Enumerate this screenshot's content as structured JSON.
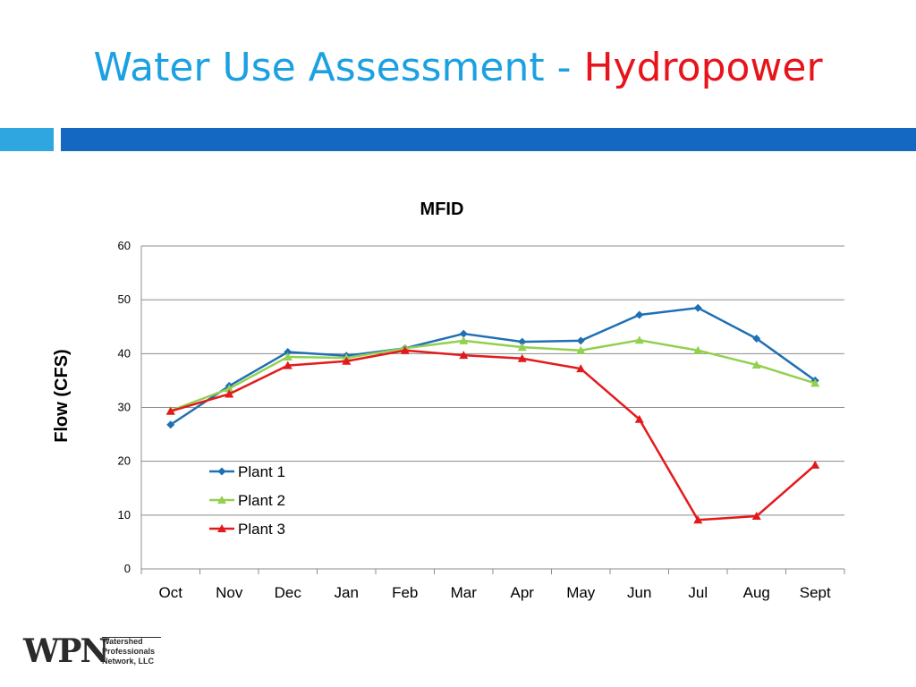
{
  "slide": {
    "title_part1": "Water Use Assessment - ",
    "title_part2": "Hydropower",
    "title_color1": "#1ba1e2",
    "title_color2": "#e8141b",
    "band_light": "#2fa6df",
    "band_dark": "#1468c2"
  },
  "logo": {
    "mark": "WPN",
    "lines": [
      "Watershed",
      "Professionals",
      "Network, LLC"
    ]
  },
  "chart_data": {
    "type": "line",
    "title": "MFID",
    "ylabel": "Flow (CFS)",
    "xlabel": "",
    "ylim": [
      0,
      60
    ],
    "yticks": [
      0,
      10,
      20,
      30,
      40,
      50,
      60
    ],
    "grid": true,
    "legend_position": "bottom-left (inside plot)",
    "categories": [
      "Oct",
      "Nov",
      "Dec",
      "Jan",
      "Feb",
      "Mar",
      "Apr",
      "May",
      "Jun",
      "Jul",
      "Aug",
      "Sept"
    ],
    "series": [
      {
        "name": "Plant 1",
        "color": "#1f6fb4",
        "marker": "diamond",
        "values": [
          26.8,
          34.0,
          40.3,
          39.6,
          41.0,
          43.7,
          42.2,
          42.4,
          47.2,
          48.5,
          42.8,
          35.0
        ]
      },
      {
        "name": "Plant 2",
        "color": "#92d050",
        "marker": "triangle",
        "values": [
          29.4,
          33.5,
          39.4,
          39.2,
          41.0,
          42.4,
          41.2,
          40.6,
          42.5,
          40.6,
          37.9,
          34.5
        ]
      },
      {
        "name": "Plant 3",
        "color": "#e31a1c",
        "marker": "triangle",
        "values": [
          29.3,
          32.5,
          37.8,
          38.6,
          40.6,
          39.7,
          39.1,
          37.2,
          27.8,
          9.1,
          9.8,
          19.3
        ]
      }
    ]
  }
}
